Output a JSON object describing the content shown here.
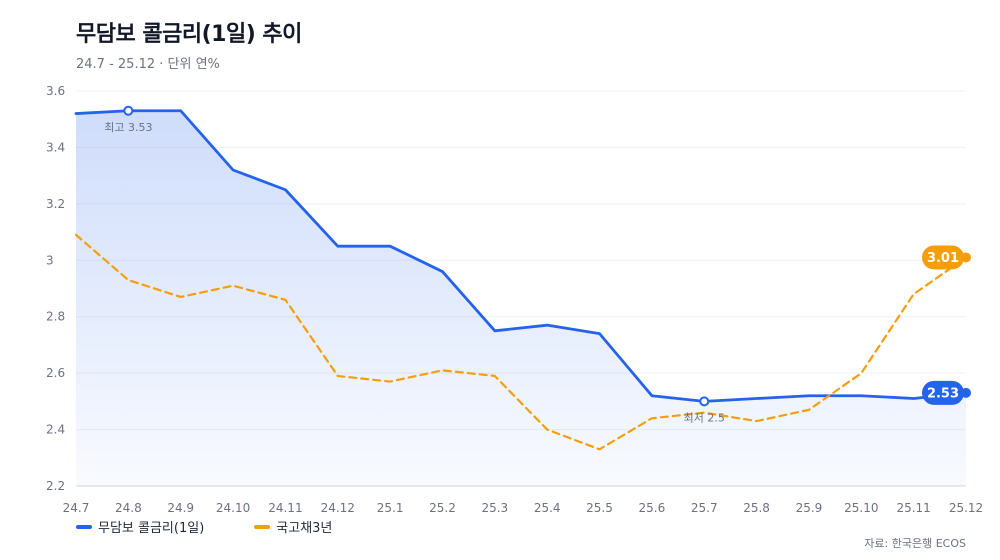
{
  "header": {
    "title": "무담보 콜금리(1일) 추이",
    "subtitle": "24.7 - 25.12 · 단위 연%"
  },
  "source": "자료: 한국은행 ECOS",
  "colors": {
    "call_rate": "#2563eb",
    "treasury_3y": "#f59e0b"
  },
  "chart_data": {
    "type": "line",
    "title": "무담보 콜금리(1일) 추이",
    "subtitle": "24.7 - 25.12 · 단위 연%",
    "xlabel": "",
    "ylabel": "",
    "ylim": [
      2.2,
      3.6
    ],
    "yticks": [
      "2.2",
      "2.4",
      "2.6",
      "2.8",
      "3",
      "3.2",
      "3.4",
      "3.6"
    ],
    "grid": true,
    "legend_position": "bottom-left",
    "categories": [
      "24.7",
      "24.8",
      "24.9",
      "24.10",
      "24.11",
      "24.12",
      "25.1",
      "25.2",
      "25.3",
      "25.4",
      "25.5",
      "25.6",
      "25.7",
      "25.8",
      "25.9",
      "25.10",
      "25.11",
      "25.12"
    ],
    "series": [
      {
        "name": "무담보 콜금리(1일)",
        "color": "#2563eb",
        "style": "solid",
        "area_fill": true,
        "values": [
          3.52,
          3.53,
          3.53,
          3.32,
          3.25,
          3.05,
          3.05,
          2.96,
          2.75,
          2.77,
          2.74,
          2.52,
          2.5,
          2.51,
          2.52,
          2.52,
          2.51,
          2.53
        ],
        "end_label": "2.53"
      },
      {
        "name": "국고채3년",
        "color": "#f59e0b",
        "style": "dashed",
        "area_fill": false,
        "values": [
          3.09,
          2.93,
          2.87,
          2.91,
          2.86,
          2.59,
          2.57,
          2.61,
          2.59,
          2.4,
          2.33,
          2.44,
          2.46,
          2.43,
          2.47,
          2.6,
          2.88,
          3.01
        ],
        "end_label": "3.01"
      }
    ],
    "annotations": [
      {
        "series": 0,
        "index": 1,
        "text": "최고 3.53",
        "position": "below"
      },
      {
        "series": 0,
        "index": 12,
        "text": "최저 2.5",
        "position": "below"
      }
    ]
  }
}
